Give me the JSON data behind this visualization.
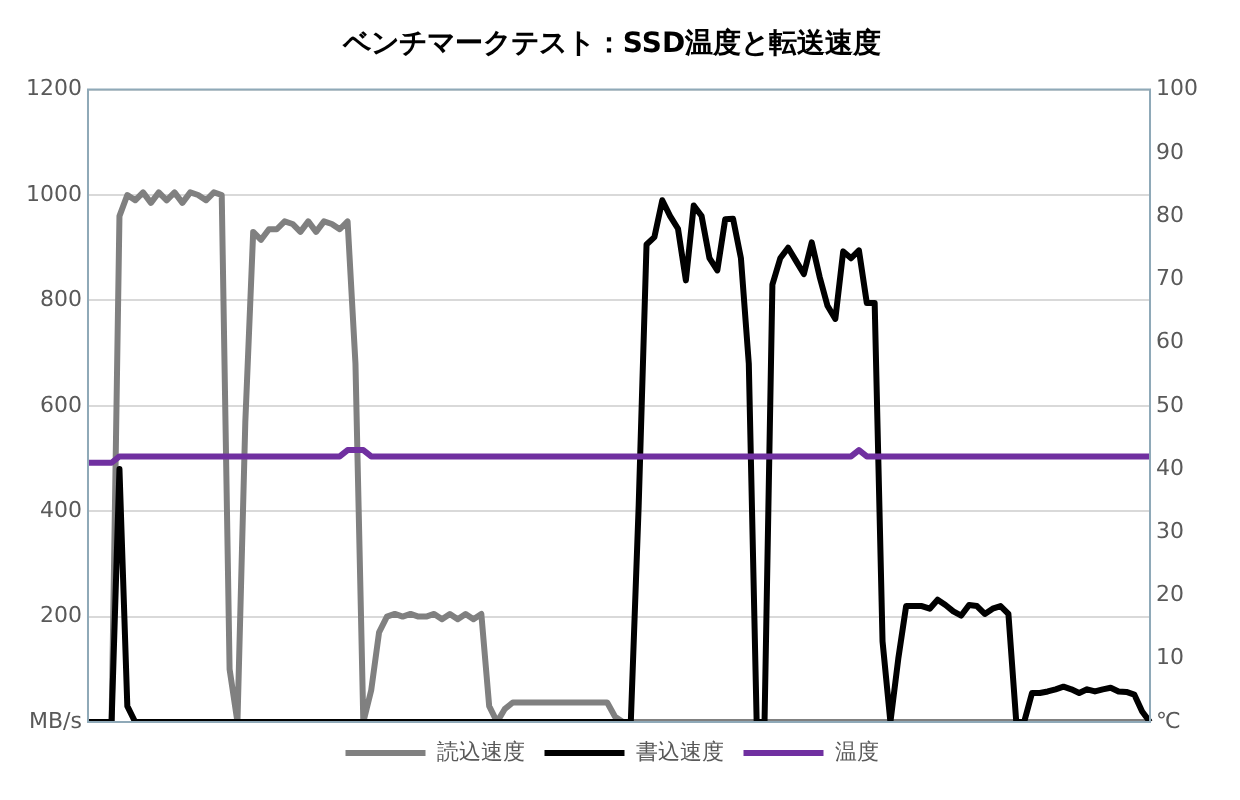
{
  "chart_data": {
    "type": "line",
    "title": "ベンチマークテスト：SSD温度と転送速度",
    "categories": [
      null,
      null,
      null,
      null,
      null,
      null,
      null,
      null,
      null,
      null,
      null,
      null,
      null,
      null,
      null,
      null,
      null,
      null,
      null,
      null,
      null,
      null,
      null,
      null,
      null,
      null,
      null,
      null,
      null,
      null,
      null,
      null,
      null,
      null,
      null,
      null,
      null,
      null,
      null,
      null,
      null,
      null,
      null,
      null,
      null,
      null,
      null,
      null,
      null,
      null,
      null,
      null,
      null,
      null,
      null,
      null,
      null,
      null,
      null,
      null,
      null,
      null,
      null,
      null,
      null,
      null,
      null,
      null,
      null,
      null,
      null,
      null,
      null,
      null,
      null,
      null,
      null,
      null,
      null,
      null,
      null,
      null,
      null,
      null,
      null,
      null,
      null,
      null,
      null,
      null,
      null,
      null,
      null,
      null,
      null,
      null,
      null,
      null,
      null,
      null,
      null,
      null,
      null,
      null,
      null,
      null,
      null,
      null,
      null,
      null,
      null,
      null,
      null,
      null,
      null,
      null,
      null,
      null,
      null,
      null,
      null,
      null,
      null,
      null,
      null,
      null,
      null,
      null,
      null,
      null,
      null,
      null,
      null,
      null,
      null,
      null
    ],
    "series": [
      {
        "name": "読込速度",
        "color": "#808080",
        "values": [
          0,
          0,
          0,
          0,
          960,
          1000,
          990,
          1005,
          985,
          1005,
          990,
          1005,
          985,
          1005,
          1000,
          990,
          1005,
          1000,
          100,
          0,
          570,
          930,
          915,
          935,
          935,
          950,
          945,
          930,
          950,
          930,
          950,
          945,
          935,
          950,
          680,
          0,
          60,
          170,
          200,
          205,
          200,
          205,
          200,
          200,
          205,
          195,
          205,
          195,
          205,
          195,
          205,
          30,
          0,
          25,
          37,
          37,
          37,
          37,
          37,
          37,
          37,
          37,
          37,
          37,
          37,
          37,
          37,
          10,
          0,
          0,
          0,
          0,
          0,
          0,
          0,
          0,
          0,
          0,
          0,
          0,
          0,
          0,
          0,
          0,
          0,
          0,
          0,
          0,
          0,
          0,
          0,
          0,
          0,
          0,
          0,
          0,
          0,
          0,
          0,
          0,
          0,
          0,
          0,
          0,
          0,
          0,
          0,
          0,
          0,
          0,
          0,
          0,
          0,
          0,
          0,
          0,
          0,
          0,
          0,
          0,
          0,
          0,
          0,
          0,
          0,
          0,
          0,
          0,
          0,
          0,
          0,
          0,
          0,
          0,
          0,
          0
        ]
      },
      {
        "name": "書込速度",
        "color": "#000000",
        "values": [
          0,
          0,
          0,
          0,
          480,
          30,
          0,
          0,
          0,
          0,
          0,
          0,
          0,
          0,
          0,
          0,
          0,
          0,
          0,
          0,
          0,
          0,
          0,
          0,
          0,
          0,
          0,
          0,
          0,
          0,
          0,
          0,
          0,
          0,
          0,
          0,
          0,
          0,
          0,
          0,
          0,
          0,
          0,
          0,
          0,
          0,
          0,
          0,
          0,
          0,
          0,
          0,
          0,
          0,
          0,
          0,
          0,
          0,
          0,
          0,
          0,
          0,
          0,
          0,
          0,
          0,
          0,
          0,
          0,
          0,
          410,
          906,
          920,
          990,
          960,
          936,
          838,
          980,
          960,
          880,
          857,
          954,
          955,
          880,
          680,
          0,
          0,
          830,
          880,
          900,
          875,
          850,
          910,
          845,
          790,
          765,
          893,
          880,
          895,
          795,
          795,
          153,
          0,
          120,
          220,
          220,
          220,
          215,
          232,
          222,
          210,
          202,
          222,
          220,
          205,
          215,
          220,
          205,
          0,
          0,
          55,
          55,
          58,
          62,
          67,
          62,
          55,
          62,
          58,
          62,
          65,
          58,
          57,
          52,
          20,
          0
        ]
      },
      {
        "name": "温度",
        "color": "#7030a0",
        "axis": "y2",
        "values": [
          41,
          41,
          41,
          41,
          42,
          42,
          42,
          42,
          42,
          42,
          42,
          42,
          42,
          42,
          42,
          42,
          42,
          42,
          42,
          42,
          42,
          42,
          42,
          42,
          42,
          42,
          42,
          42,
          42,
          42,
          42,
          42,
          42,
          43,
          43,
          43,
          42,
          42,
          42,
          42,
          42,
          42,
          42,
          42,
          42,
          42,
          42,
          42,
          42,
          42,
          42,
          42,
          42,
          42,
          42,
          42,
          42,
          42,
          42,
          42,
          42,
          42,
          42,
          42,
          42,
          42,
          42,
          42,
          42,
          42,
          42,
          42,
          42,
          42,
          42,
          42,
          42,
          42,
          42,
          42,
          42,
          42,
          42,
          42,
          42,
          42,
          42,
          42,
          42,
          42,
          42,
          42,
          42,
          42,
          42,
          42,
          42,
          42,
          43,
          42,
          42,
          42,
          42,
          42,
          42,
          42,
          42,
          42,
          42,
          42,
          42,
          42,
          42,
          42,
          42,
          42,
          42,
          42,
          42,
          42,
          42,
          42,
          42,
          42,
          42,
          42,
          42,
          42,
          42,
          42,
          42,
          42,
          42,
          42,
          42,
          42
        ]
      }
    ],
    "ylim": [
      0,
      1200
    ],
    "yticks": [
      {
        "value": 0,
        "label": "MB/s"
      },
      200,
      400,
      600,
      800,
      1000,
      1200
    ],
    "y2lim": [
      0,
      100
    ],
    "y2ticks": [
      {
        "value": 0,
        "label": "℃"
      },
      10,
      20,
      30,
      40,
      50,
      60,
      70,
      80,
      90,
      100
    ],
    "grid": "y",
    "legend": "bottom",
    "marker": "none"
  }
}
